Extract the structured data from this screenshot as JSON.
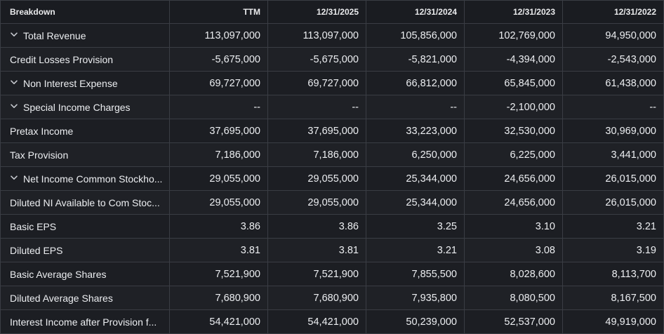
{
  "columns": [
    "Breakdown",
    "TTM",
    "12/31/2025",
    "12/31/2024",
    "12/31/2023",
    "12/31/2022"
  ],
  "icons": {
    "expand": "chevron-down-icon"
  },
  "rows": [
    {
      "label": "Total Revenue",
      "expandable": true,
      "values": [
        "113,097,000",
        "113,097,000",
        "105,856,000",
        "102,769,000",
        "94,950,000"
      ]
    },
    {
      "label": "Credit Losses Provision",
      "expandable": false,
      "values": [
        "-5,675,000",
        "-5,675,000",
        "-5,821,000",
        "-4,394,000",
        "-2,543,000"
      ]
    },
    {
      "label": "Non Interest Expense",
      "expandable": true,
      "values": [
        "69,727,000",
        "69,727,000",
        "66,812,000",
        "65,845,000",
        "61,438,000"
      ]
    },
    {
      "label": "Special Income Charges",
      "expandable": true,
      "values": [
        "--",
        "--",
        "--",
        "-2,100,000",
        "--"
      ]
    },
    {
      "label": "Pretax Income",
      "expandable": false,
      "values": [
        "37,695,000",
        "37,695,000",
        "33,223,000",
        "32,530,000",
        "30,969,000"
      ]
    },
    {
      "label": "Tax Provision",
      "expandable": false,
      "values": [
        "7,186,000",
        "7,186,000",
        "6,250,000",
        "6,225,000",
        "3,441,000"
      ]
    },
    {
      "label": "Net Income Common Stockho...",
      "expandable": true,
      "values": [
        "29,055,000",
        "29,055,000",
        "25,344,000",
        "24,656,000",
        "26,015,000"
      ]
    },
    {
      "label": "Diluted NI Available to Com Stoc...",
      "expandable": false,
      "values": [
        "29,055,000",
        "29,055,000",
        "25,344,000",
        "24,656,000",
        "26,015,000"
      ]
    },
    {
      "label": "Basic EPS",
      "expandable": false,
      "values": [
        "3.86",
        "3.86",
        "3.25",
        "3.10",
        "3.21"
      ]
    },
    {
      "label": "Diluted EPS",
      "expandable": false,
      "values": [
        "3.81",
        "3.81",
        "3.21",
        "3.08",
        "3.19"
      ]
    },
    {
      "label": "Basic Average Shares",
      "expandable": false,
      "values": [
        "7,521,900",
        "7,521,900",
        "7,855,500",
        "8,028,600",
        "8,113,700"
      ]
    },
    {
      "label": "Diluted Average Shares",
      "expandable": false,
      "values": [
        "7,680,900",
        "7,680,900",
        "7,935,800",
        "8,080,500",
        "8,167,500"
      ]
    },
    {
      "label": "Interest Income after Provision f...",
      "expandable": false,
      "values": [
        "54,421,000",
        "54,421,000",
        "50,239,000",
        "52,537,000",
        "49,919,000"
      ]
    }
  ]
}
